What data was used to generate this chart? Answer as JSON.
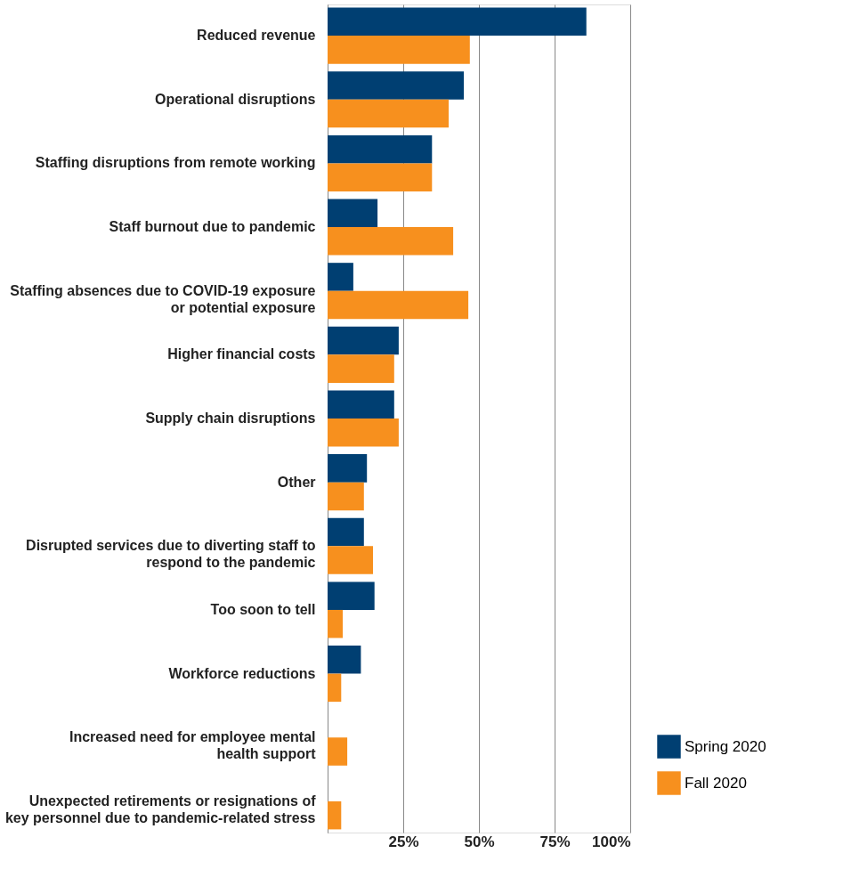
{
  "chart_data": {
    "type": "bar",
    "orientation": "horizontal",
    "categories": [
      "Reduced revenue",
      "Operational disruptions",
      "Staffing disruptions from remote working",
      "Staff burnout due to pandemic",
      "Staffing absences due to COVID-19 exposure\nor potential exposure",
      "Higher financial costs",
      "Supply chain disruptions",
      "Other",
      "Disrupted services due to diverting staff to\nrespond to the  pandemic",
      "Too soon to tell",
      "Workforce reductions",
      "Increased need for employee mental\nhealth support",
      "Unexpected retirements or resignations of\nkey personnel due to pandemic-related stress"
    ],
    "series": [
      {
        "name": "Spring 2020",
        "color": "#003f72",
        "values": [
          85.5,
          45,
          34.5,
          16.5,
          8.5,
          23.5,
          22,
          13,
          12,
          15.5,
          11,
          null,
          null
        ]
      },
      {
        "name": "Fall 2020",
        "color": "#f7901e",
        "values": [
          47,
          40,
          34.5,
          41.5,
          46.5,
          22,
          23.5,
          12,
          15,
          5,
          4.5,
          6.5,
          4.5
        ]
      }
    ],
    "xlim": [
      0,
      100
    ],
    "xticks": [
      {
        "value": 0,
        "label": null
      },
      {
        "value": 25,
        "label": "25%"
      },
      {
        "value": 50,
        "label": "50%"
      },
      {
        "value": 75,
        "label": "75%"
      },
      {
        "value": 100,
        "label": "100%"
      }
    ],
    "grid": "x",
    "legend": "bottom right"
  }
}
